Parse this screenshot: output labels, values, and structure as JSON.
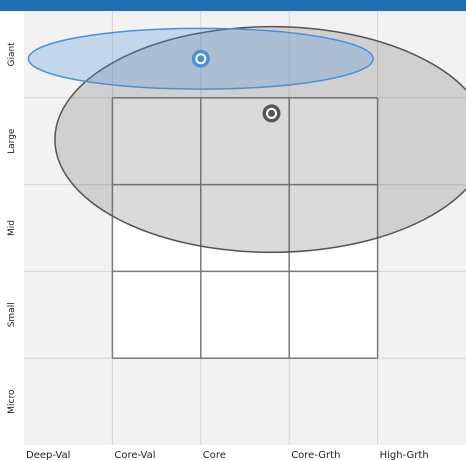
{
  "chart_data": {
    "type": "scatter",
    "title": "",
    "xlabel": "",
    "ylabel": "",
    "x_categories": [
      "Deep-Val",
      "Core-Val",
      "Core",
      "Core-Grth",
      "High-Grth"
    ],
    "y_categories": [
      "Micro",
      "Small",
      "Mid",
      "Large",
      "Giant"
    ],
    "xlim": [
      0,
      5
    ],
    "ylim": [
      0,
      5
    ],
    "grid": true,
    "style_box": {
      "x_range": [
        1,
        4
      ],
      "y_range": [
        1,
        4
      ]
    },
    "series": [
      {
        "color": "#4a90d9",
        "point": {
          "x": 2.0,
          "y": 4.45
        },
        "ellipse": {
          "cx": 2.0,
          "cy": 4.45,
          "rx": 1.95,
          "ry": 0.35
        }
      },
      {
        "color": "#555555",
        "point": {
          "x": 2.8,
          "y": 3.82
        },
        "ellipse": {
          "cx": 2.8,
          "cy": 3.52,
          "rx": 2.45,
          "ry": 1.3
        }
      }
    ]
  },
  "colors": {
    "top_bar": "#1f6fb5",
    "grid": "#d4d4d4",
    "style_box": "#7a7a7a",
    "plot_bg": "#f2f2f2"
  }
}
